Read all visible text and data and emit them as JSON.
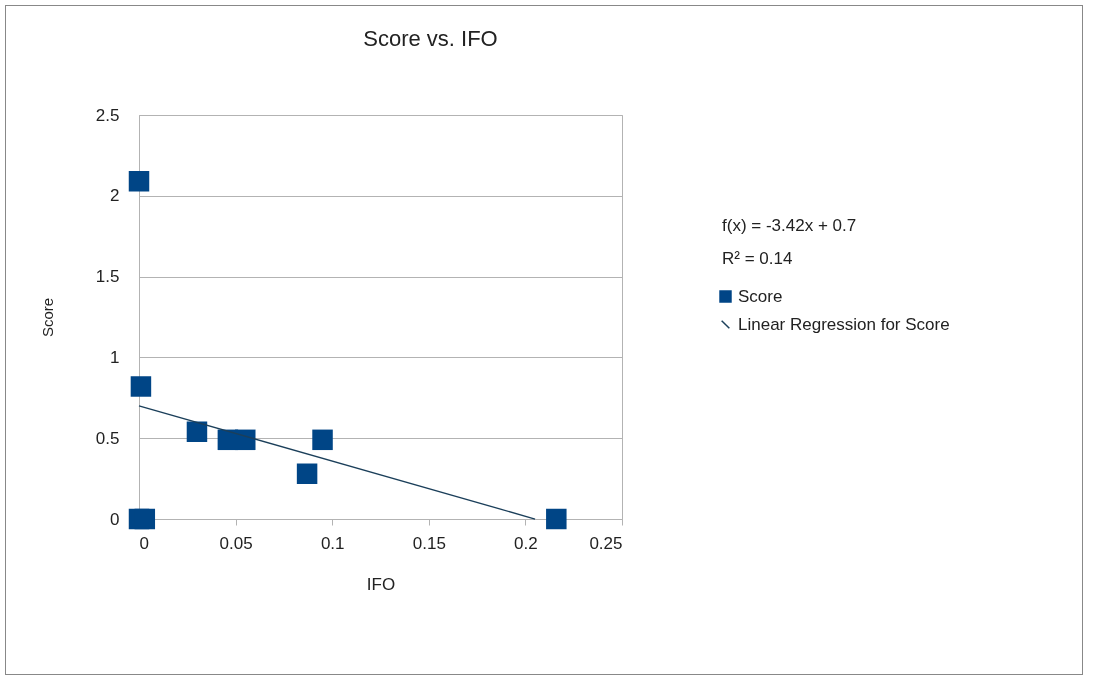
{
  "chart_data": {
    "type": "scatter",
    "title": "Score vs. IFO",
    "xlabel": "IFO",
    "ylabel": "Score",
    "series": [
      {
        "name": "Score",
        "marker": "square",
        "color": "#004586",
        "x": [
          0,
          0.001,
          0,
          0.003,
          0.03,
          0.046,
          0.055,
          0.087,
          0.095,
          0.216
        ],
        "values": [
          2.09,
          0.82,
          0,
          0,
          0.54,
          0.49,
          0.49,
          0.28,
          0.49,
          0
        ]
      },
      {
        "name": "Linear Regression for Score",
        "type": "line",
        "color": "#1b3f5a",
        "x": [
          0,
          0.205
        ],
        "values": [
          0.7,
          0
        ]
      }
    ],
    "annotations": [
      "f(x) = -3.42x + 0.7",
      "R² = 0.14"
    ],
    "xlim": [
      0,
      0.25
    ],
    "xticks": [
      0,
      0.05,
      0.1,
      0.15,
      0.2,
      0.25
    ],
    "ylim": [
      0,
      2.5
    ],
    "yticks": [
      0,
      0.5,
      1,
      1.5,
      2,
      2.5
    ],
    "grid": "y",
    "legend": "right"
  }
}
